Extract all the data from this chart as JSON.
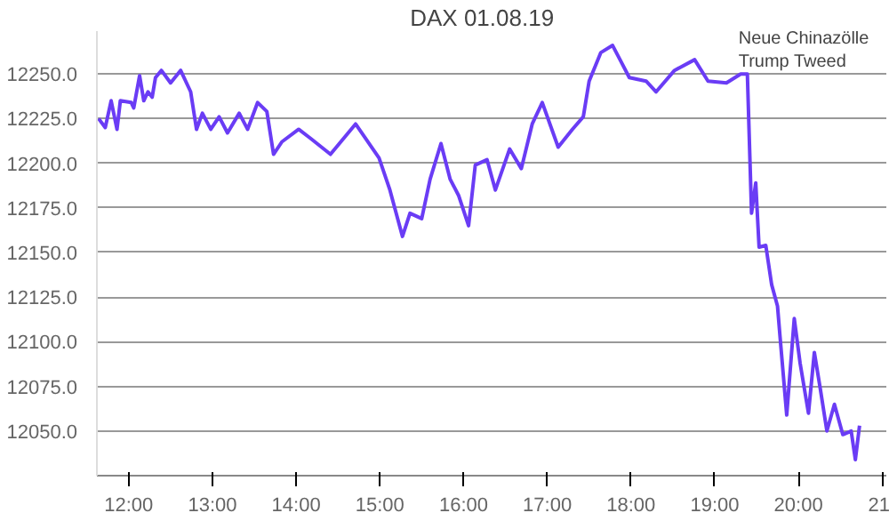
{
  "chart_data": {
    "type": "line",
    "title": "DAX    01.08.19",
    "x": [
      11.64,
      11.72,
      11.79,
      11.86,
      11.9,
      12.03,
      12.06,
      12.13,
      12.18,
      12.23,
      12.28,
      12.32,
      12.39,
      12.5,
      12.62,
      12.74,
      12.81,
      12.88,
      12.98,
      13.08,
      13.18,
      13.32,
      13.42,
      13.54,
      13.65,
      13.73,
      13.83,
      14.03,
      14.17,
      14.41,
      14.71,
      14.99,
      15.12,
      15.27,
      15.36,
      15.5,
      15.6,
      15.73,
      15.84,
      15.94,
      16.06,
      16.14,
      16.28,
      16.38,
      16.55,
      16.69,
      16.82,
      16.94,
      17.13,
      17.3,
      17.43,
      17.5,
      17.64,
      17.78,
      17.88,
      17.98,
      18.18,
      18.3,
      18.52,
      18.76,
      18.92,
      19.14,
      19.31,
      19.39,
      19.44,
      19.49,
      19.53,
      19.61,
      19.68,
      19.75,
      19.78,
      19.86,
      19.95,
      20.02,
      20.12,
      20.19,
      20.26,
      20.34,
      20.43,
      20.53,
      20.63,
      20.68,
      20.73
    ],
    "series": [
      {
        "color": "#6a3cf5",
        "values": [
          12225,
          12220,
          12235,
          12219,
          12235,
          12234,
          12231,
          12249,
          12235,
          12240,
          12237,
          12248,
          12252,
          12245,
          12252,
          12240,
          12219,
          12228,
          12219,
          12226,
          12217,
          12228,
          12219,
          12234,
          12229,
          12205,
          12212,
          12219,
          12214,
          12205,
          12222,
          12203,
          12185,
          12159,
          12172,
          12169,
          12191,
          12211,
          12191,
          12182,
          12165,
          12199,
          12202,
          12185,
          12208,
          12197,
          12222,
          12234,
          12209,
          12219,
          12226,
          12246,
          12262,
          12266,
          12257,
          12248,
          12246,
          12240,
          12252,
          12258,
          12246,
          12245,
          12250,
          12250,
          12172,
          12189,
          12153,
          12154,
          12132,
          12120,
          12103,
          12059,
          12113,
          12088,
          12060,
          12094,
          12074,
          12050,
          12065,
          12048,
          12050,
          12034,
          12053
        ]
      }
    ],
    "xlim": [
      11.62,
      21.05
    ],
    "ylim": [
      12025,
      12274
    ],
    "xticks": [
      {
        "value": 12,
        "label": "12:00"
      },
      {
        "value": 13,
        "label": "13:00"
      },
      {
        "value": 14,
        "label": "14:00"
      },
      {
        "value": 15,
        "label": "15:00"
      },
      {
        "value": 16,
        "label": "16:00"
      },
      {
        "value": 17,
        "label": "17:00"
      },
      {
        "value": 18,
        "label": "18:00"
      },
      {
        "value": 19,
        "label": "19:00"
      },
      {
        "value": 20,
        "label": "20:00"
      },
      {
        "value": 21,
        "label": "21"
      }
    ],
    "yticks": [
      {
        "value": 12050,
        "label": "12050.0"
      },
      {
        "value": 12075,
        "label": "12075.0"
      },
      {
        "value": 12100,
        "label": "12100.0"
      },
      {
        "value": 12125,
        "label": "12125.0"
      },
      {
        "value": 12150,
        "label": "12150.0"
      },
      {
        "value": 12175,
        "label": "12175.0"
      },
      {
        "value": 12200,
        "label": "12200.0"
      },
      {
        "value": 12225,
        "label": "12225.0"
      },
      {
        "value": 12250,
        "label": "12250.0"
      }
    ],
    "annotations": [
      {
        "text": "Neue Chinazölle\nTrump Tweed",
        "x": 19.39,
        "y": 12250
      }
    ],
    "grid": "y",
    "line_style": "solid"
  }
}
